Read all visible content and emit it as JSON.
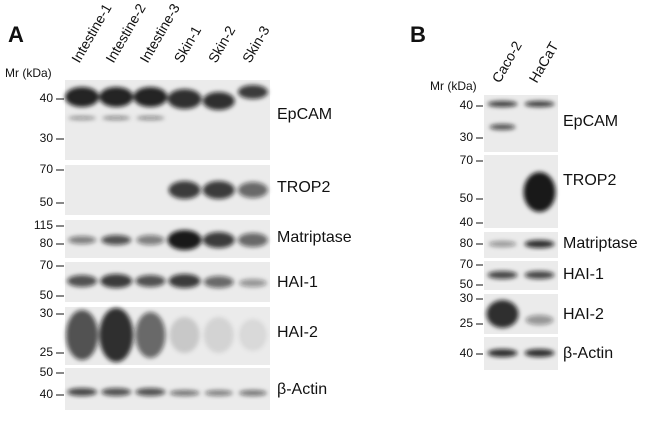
{
  "panels": [
    {
      "label": "A",
      "mr_label": "Mr (kDa)",
      "lanes": [
        "Intestine-1",
        "Intestine-2",
        "Intestine-3",
        "Skin-1",
        "Skin-2",
        "Skin-3"
      ],
      "rows": [
        {
          "protein": "EpCAM",
          "markers": [
            40,
            30
          ]
        },
        {
          "protein": "TROP2",
          "markers": [
            70,
            50
          ]
        },
        {
          "protein": "Matriptase",
          "markers": [
            115,
            80
          ]
        },
        {
          "protein": "HAI-1",
          "markers": [
            70,
            50
          ]
        },
        {
          "protein": "HAI-2",
          "markers": [
            30,
            25
          ]
        },
        {
          "protein": "β-Actin",
          "markers": [
            50,
            40
          ]
        }
      ]
    },
    {
      "label": "B",
      "mr_label": "Mr (kDa)",
      "lanes": [
        "Caco-2",
        "HaCaT"
      ],
      "rows": [
        {
          "protein": "EpCAM",
          "markers": [
            40,
            30
          ]
        },
        {
          "protein": "TROP2",
          "markers": [
            70,
            50,
            40
          ]
        },
        {
          "protein": "Matriptase",
          "markers": [
            80
          ]
        },
        {
          "protein": "HAI-1",
          "markers": [
            70,
            50
          ]
        },
        {
          "protein": "HAI-2",
          "markers": [
            30,
            25
          ]
        },
        {
          "protein": "β-Actin",
          "markers": [
            40
          ]
        }
      ]
    }
  ]
}
